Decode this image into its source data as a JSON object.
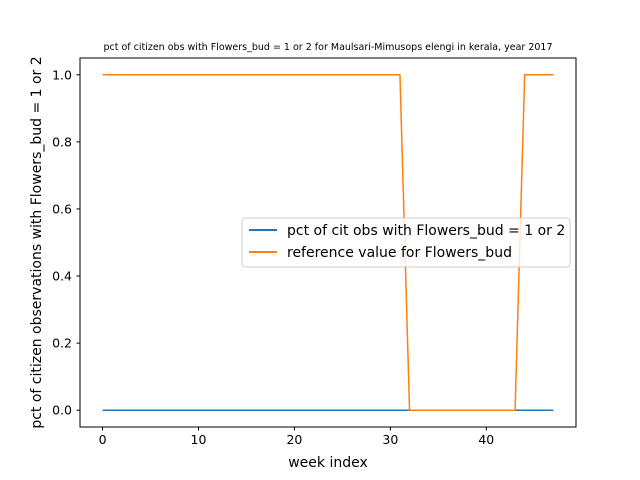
{
  "chart_data": {
    "type": "line",
    "title": "pct of citizen obs with Flowers_bud = 1 or 2 for Maulsari-Mimusops elengi in kerala, year 2017",
    "xlabel": "week index",
    "ylabel": "pct of citizen observations with Flowers_bud = 1 or 2",
    "xlim": [
      -2.35,
      49.35
    ],
    "ylim": [
      -0.05,
      1.05
    ],
    "xticks": [
      0,
      10,
      20,
      30,
      40
    ],
    "yticks": [
      0.0,
      0.2,
      0.4,
      0.6,
      0.8,
      1.0
    ],
    "xtick_labels": [
      "0",
      "10",
      "20",
      "30",
      "40"
    ],
    "ytick_labels": [
      "0.0",
      "0.2",
      "0.4",
      "0.6",
      "0.8",
      "1.0"
    ],
    "grid": false,
    "legend_position": "center-right",
    "x": [
      0,
      1,
      2,
      3,
      4,
      5,
      6,
      7,
      8,
      9,
      10,
      11,
      12,
      13,
      14,
      15,
      16,
      17,
      18,
      19,
      20,
      21,
      22,
      23,
      24,
      25,
      26,
      27,
      28,
      29,
      30,
      31,
      32,
      33,
      34,
      35,
      36,
      37,
      38,
      39,
      40,
      41,
      42,
      43,
      44,
      45,
      46,
      47
    ],
    "series": [
      {
        "name": "pct of cit obs with Flowers_bud = 1 or 2",
        "color": "#1f77b4",
        "values": [
          0,
          0,
          0,
          0,
          0,
          0,
          0,
          0,
          0,
          0,
          0,
          0,
          0,
          0,
          0,
          0,
          0,
          0,
          0,
          0,
          0,
          0,
          0,
          0,
          0,
          0,
          0,
          0,
          0,
          0,
          0,
          0,
          0,
          0,
          0,
          0,
          0,
          0,
          0,
          0,
          0,
          0,
          0,
          0,
          0,
          0,
          0,
          0
        ]
      },
      {
        "name": "reference value for Flowers_bud",
        "color": "#ff7f0e",
        "values": [
          1,
          1,
          1,
          1,
          1,
          1,
          1,
          1,
          1,
          1,
          1,
          1,
          1,
          1,
          1,
          1,
          1,
          1,
          1,
          1,
          1,
          1,
          1,
          1,
          1,
          1,
          1,
          1,
          1,
          1,
          1,
          1,
          0,
          0,
          0,
          0,
          0,
          0,
          0,
          0,
          0,
          0,
          0,
          0,
          1,
          1,
          1,
          1
        ]
      }
    ]
  }
}
